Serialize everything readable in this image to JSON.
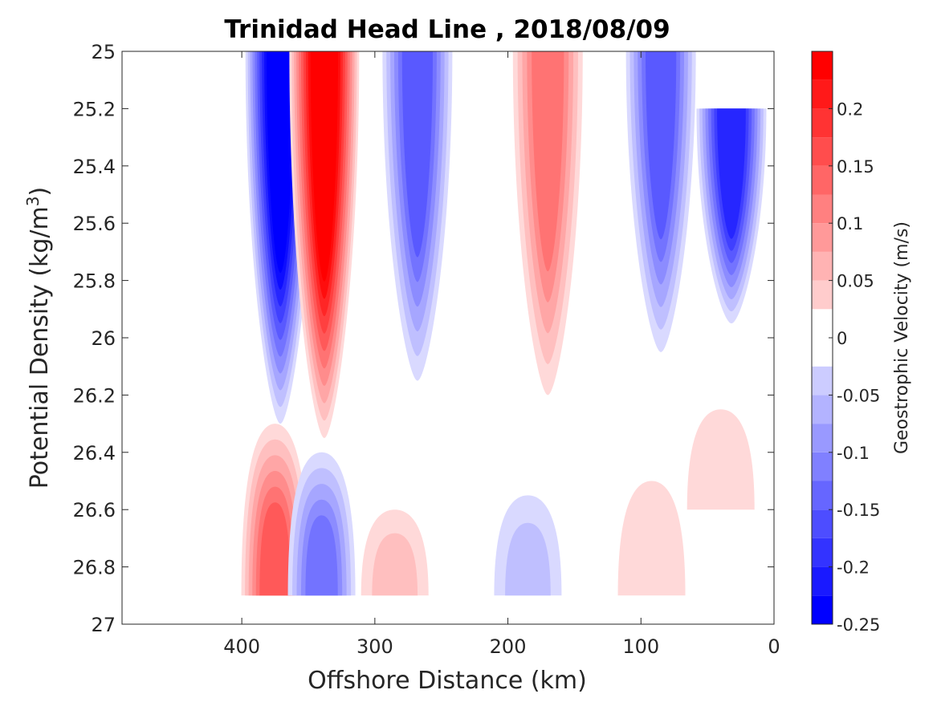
{
  "chart_data": {
    "type": "heatmap",
    "subtype": "filled-contour",
    "title": "Trinidad Head Line , 2018/08/09",
    "xlabel": "Offshore Distance (km)",
    "ylabel_main": "Potential Density (kg/m",
    "ylabel_sup": "3",
    "ylabel_close": ")",
    "xlim": [
      490,
      0
    ],
    "x_reversed": true,
    "ylim": [
      25,
      27
    ],
    "y_reversed": true,
    "xticks": [
      400,
      300,
      200,
      100,
      0
    ],
    "xtick_labels": [
      "400",
      "300",
      "200",
      "100",
      "0"
    ],
    "yticks": [
      25,
      25.2,
      25.4,
      25.6,
      25.8,
      26,
      26.2,
      26.4,
      26.6,
      26.8,
      27
    ],
    "ytick_labels": [
      "25",
      "25.2",
      "25.4",
      "25.6",
      "25.8",
      "26",
      "26.2",
      "26.4",
      "26.6",
      "26.8",
      "27"
    ],
    "colorbar": {
      "label": "Geostrophic Velocity (m/s)",
      "range": [
        -0.25,
        0.25
      ],
      "levels": [
        -0.25,
        -0.225,
        -0.2,
        -0.175,
        -0.15,
        -0.125,
        -0.1,
        -0.075,
        -0.05,
        -0.025,
        0,
        0.025,
        0.05,
        0.075,
        0.1,
        0.125,
        0.15,
        0.175,
        0.2,
        0.225,
        0.25
      ],
      "ticks": [
        0.2,
        0.15,
        0.1,
        0.05,
        0,
        -0.05,
        -0.1,
        -0.15,
        -0.2,
        -0.25
      ],
      "tick_labels": [
        "0.2",
        "0.15",
        "0.1",
        "0.05",
        "0",
        "-0.05",
        "-0.1",
        "-0.15",
        "-0.2",
        "-0.25"
      ],
      "colormap": "blue-white-red",
      "neg_color": "#0000ff",
      "pos_color": "#ff0000"
    },
    "features": [
      {
        "label": "southward jet",
        "x_center": 371,
        "y_top": 25,
        "y_bottom": 26.3,
        "peak_velocity": -0.25
      },
      {
        "label": "northward jet",
        "x_center": 338,
        "y_top": 25,
        "y_bottom": 26.35,
        "peak_velocity": 0.25
      },
      {
        "label": "southward band",
        "x_center": 268,
        "y_top": 25,
        "y_bottom": 26.15,
        "peak_velocity": -0.15
      },
      {
        "label": "northward band",
        "x_center": 170,
        "y_top": 25,
        "y_bottom": 26.2,
        "peak_velocity": 0.125
      },
      {
        "label": "southward band",
        "x_center": 85,
        "y_top": 25,
        "y_bottom": 26.05,
        "peak_velocity": -0.15
      },
      {
        "label": "nearshore southward",
        "x_center": 32,
        "y_top": 25.2,
        "y_bottom": 25.95,
        "peak_velocity": -0.2
      },
      {
        "label": "deep northward",
        "x_center": 375,
        "y_top": 26.3,
        "y_bottom": 26.9,
        "peak_velocity": 0.15
      },
      {
        "label": "deep southward",
        "x_center": 340,
        "y_top": 26.4,
        "y_bottom": 26.9,
        "peak_velocity": -0.125
      },
      {
        "label": "deep northward",
        "x_center": 285,
        "y_top": 26.6,
        "y_bottom": 26.9,
        "peak_velocity": 0.05
      },
      {
        "label": "deep southward",
        "x_center": 185,
        "y_top": 26.55,
        "y_bottom": 26.9,
        "peak_velocity": -0.05
      },
      {
        "label": "deep northward",
        "x_center": 92,
        "y_top": 26.5,
        "y_bottom": 26.9,
        "peak_velocity": 0.025
      },
      {
        "label": "deep northward",
        "x_center": 40,
        "y_top": 26.25,
        "y_bottom": 26.6,
        "peak_velocity": 0.025
      }
    ]
  }
}
